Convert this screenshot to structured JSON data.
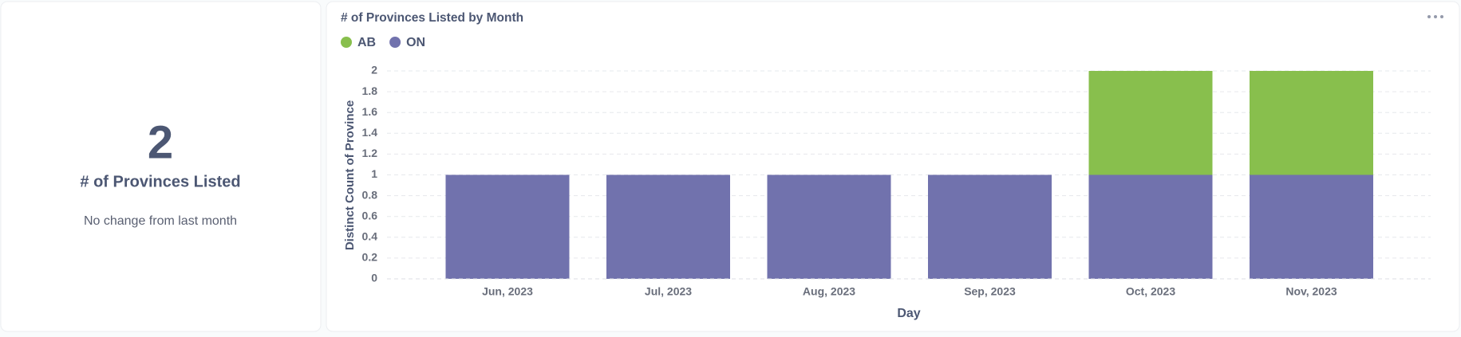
{
  "scalar_card": {
    "value": "2",
    "title": "# of Provinces Listed",
    "subtitle": "No change from last month"
  },
  "chart_data": {
    "type": "bar",
    "stacked": true,
    "title": "# of Provinces Listed by Month",
    "categories": [
      "Jun, 2023",
      "Jul, 2023",
      "Aug, 2023",
      "Sep, 2023",
      "Oct, 2023",
      "Nov, 2023"
    ],
    "series": [
      {
        "name": "AB",
        "color": "#88bf4d",
        "values": [
          null,
          null,
          null,
          null,
          1,
          1
        ]
      },
      {
        "name": "ON",
        "color": "#7172ad",
        "values": [
          1,
          1,
          1,
          1,
          1,
          1
        ]
      }
    ],
    "x_label": "Day",
    "y_label": "Distinct Count of Province",
    "ylim": [
      0,
      2
    ],
    "yticks": [
      0,
      0.2,
      0.4,
      0.6,
      0.8,
      1,
      1.2,
      1.4,
      1.6,
      1.8,
      2
    ],
    "grid": true,
    "legend": "top-left"
  }
}
